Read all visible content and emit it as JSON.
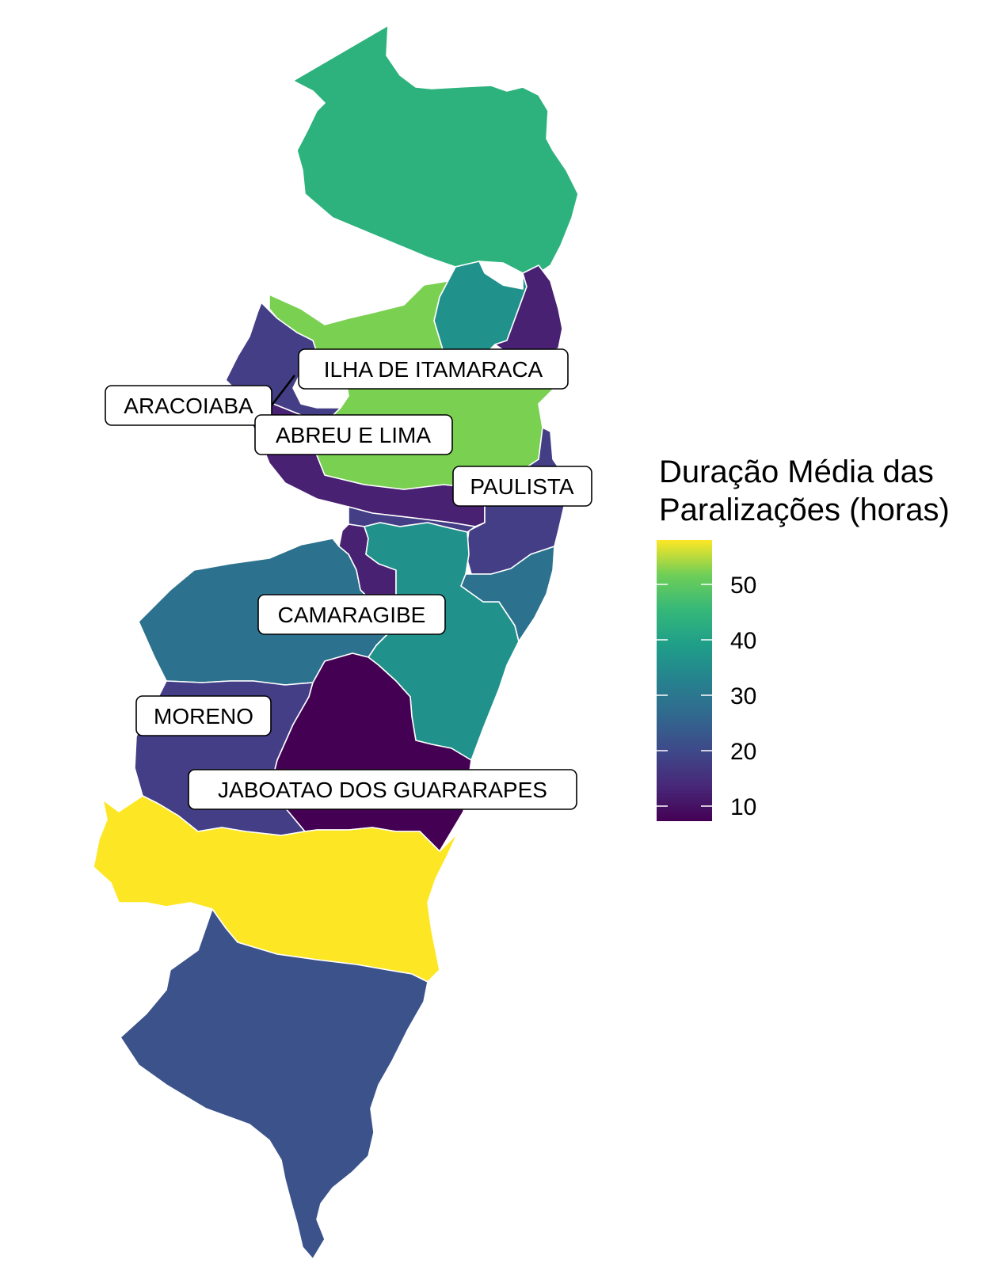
{
  "legend": {
    "title_line1": "Duração Média das",
    "title_line2": "Paralizações (horas)",
    "ticks": [
      "50",
      "40",
      "30",
      "20",
      "10"
    ],
    "scale": "viridis",
    "min_color": "#440154",
    "max_color": "#fde725"
  },
  "labels": {
    "ilha": "ILHA DE ITAMARACA",
    "aracoiaba": "ARACOIABA",
    "abreu": "ABREU E LIMA",
    "paulista": "PAULISTA",
    "camaragibe": "CAMARAGIBE",
    "moreno": "MORENO",
    "jaboatao": "JABOATAO DOS GUARARAPES"
  },
  "colors": {
    "north": "#2db27d",
    "light_green": "#7ad151",
    "teal": "#21918c",
    "teal_blue": "#2c728e",
    "blue": "#3b528b",
    "indigo": "#433e85",
    "purple": "#482173",
    "dark_purple": "#440154",
    "yellow": "#fde725"
  }
}
